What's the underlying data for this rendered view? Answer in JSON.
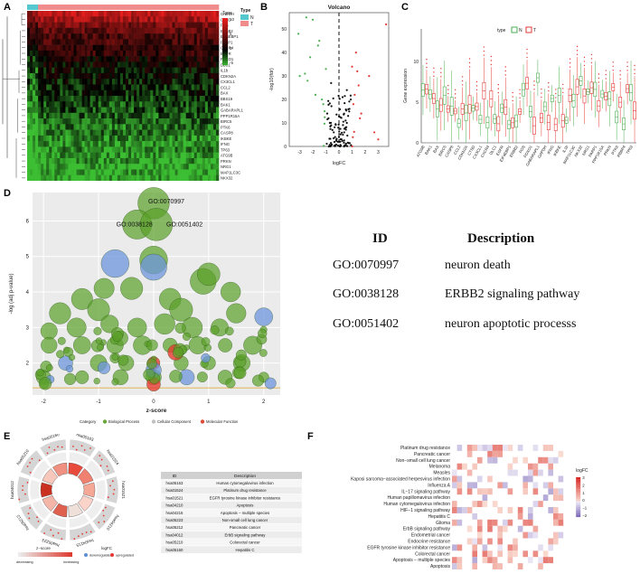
{
  "labels": {
    "A": "A",
    "B": "B",
    "C": "C",
    "D": "D",
    "E": "E",
    "F": "F"
  },
  "panelA": {
    "legend_title": "Type",
    "legend_levels": [
      "N",
      "T"
    ],
    "legend_colors": [
      "#55c8cf",
      "#f08c8c"
    ],
    "scale_ticks": [
      "10",
      "5",
      "0",
      "-5"
    ],
    "genes": [
      "GAPDH",
      "CTSD",
      "FOS",
      "ERBB2",
      "EIF4EBP1",
      "PARP1",
      "CXCR4",
      "EGFR",
      "FOXO1",
      "DLC1",
      "IL1b",
      "CDKN2A",
      "CX3CL1",
      "CCL2",
      "BAX",
      "BBS19",
      "BAK1",
      "GABARAPL1",
      "PPP1R15A",
      "BIRC5",
      "PTK6",
      "CASP8",
      "IKBKE",
      "IFNG",
      "TP63",
      "ATG9B",
      "PRKN",
      "NRG1",
      "MAP1LC3C",
      "NKX32"
    ]
  },
  "panelB": {
    "title": "Volcano",
    "xlabel": "logFC",
    "ylabel": "-log10(fdr)",
    "xticks": [
      "-3",
      "-2",
      "-1",
      "0",
      "1",
      "2",
      "3"
    ],
    "yticks": [
      "0",
      "10",
      "20",
      "30",
      "40",
      "50"
    ]
  },
  "panelC": {
    "ylabel": "Gene expression",
    "legend_title": "type",
    "legend_items": [
      "N",
      "T"
    ],
    "yticks": [
      "0",
      "5",
      "10"
    ],
    "genes": [
      "ATG9B",
      "BAK1",
      "BAX",
      "BIRC5",
      "CASP8",
      "CCL2",
      "CDKN2A",
      "CTSD",
      "CX3CL1",
      "CXCR4",
      "DLC1",
      "EGFR",
      "EIF4EBP1",
      "ERBB2",
      "FOS",
      "FOXO1",
      "GABARAPL1",
      "GAPDH",
      "IFNG",
      "IKBKE",
      "IL1b",
      "MAP1LC3C",
      "NKX32",
      "NRG1",
      "PARP1",
      "PPP1R15A",
      "PRKN",
      "PTK6",
      "RBBP4",
      "TP63"
    ]
  },
  "panelD": {
    "xlabel": "z-score",
    "ylabel": "-log (adj p-value)",
    "xticks": [
      "-2",
      "-1",
      "0",
      "1",
      "2"
    ],
    "yticks": [
      "2",
      "3",
      "4",
      "5",
      "6"
    ],
    "legend_title": "Category",
    "legend_items": [
      "Biological Process",
      "Cellular Component",
      "Molecular Function"
    ],
    "legend_colors": [
      "#6aa63a",
      "#c0c0c0",
      "#e04a3a"
    ],
    "annotations": [
      "GO:0070997",
      "GO:0038128",
      "GO:0051402"
    ]
  },
  "idtable": {
    "headers": [
      "ID",
      "Description"
    ],
    "rows": [
      {
        "id": "GO:0070997",
        "desc": "neuron death"
      },
      {
        "id": "GO:0038128",
        "desc": "ERBB2 signaling pathway"
      },
      {
        "id": "GO:0051402",
        "desc": "neuron apoptotic processs"
      }
    ]
  },
  "panelE": {
    "headers": [
      "ID",
      "Description"
    ],
    "rows": [
      {
        "id": "hsa05163",
        "desc": "Human cytomegalovirus infection"
      },
      {
        "id": "hsa01524",
        "desc": "Platinum drug resistance"
      },
      {
        "id": "hsa01521",
        "desc": "EGFR tyrosine kinase inhibitor resistance"
      },
      {
        "id": "hsa04210",
        "desc": "Apoptosis"
      },
      {
        "id": "hsa04215",
        "desc": "Apoptosis − multiple species"
      },
      {
        "id": "hsa05223",
        "desc": "Non-small cell lung cancer"
      },
      {
        "id": "hsa05212",
        "desc": "Pancreatic cancer"
      },
      {
        "id": "hsa04012",
        "desc": "ErbB signaling pathway"
      },
      {
        "id": "hsa05210",
        "desc": "Colorectal cancer"
      },
      {
        "id": "hsa05160",
        "desc": "Hepatitis C"
      }
    ],
    "ring_labels": [
      "hsa05163",
      "hsa01524",
      "hsa01521",
      "hsa04210",
      "hsa04215",
      "hsa05223",
      "hsa05212",
      "hsa04012",
      "hsa05210",
      "hsa05160"
    ],
    "zscore_title": "z−score",
    "zscore_left": "decreasing",
    "zscore_right": "increasing",
    "logfc_title": "logFC",
    "logfc_items": [
      "downregulated",
      "upregulated"
    ]
  },
  "panelF": {
    "legend_title": "logFC",
    "legend_ticks": [
      "3",
      "2",
      "1",
      "0",
      "−1",
      "−2"
    ],
    "pathways": [
      "Platinum drug resistance",
      "Pancreatic cancer",
      "Non−small cell lung cancer",
      "Melanoma",
      "Measles",
      "Kaposi sarcoma−associated herpesvirus infection",
      "Influenza A",
      "IL−17 signaling pathway",
      "Human papillomavirus infection",
      "Human cytomegalovirus infection",
      "HIF−1 signaling pathway",
      "Hepatitis C",
      "Glioma",
      "ErbB signaling pathway",
      "Endometrial cancer",
      "Endocrine resistance",
      "EGFR tyrosine kinase inhibitor resistance",
      "Colorectal cancer",
      "Apoptosis − multiple species",
      "Apoptosis"
    ]
  },
  "chart_data": [
    {
      "type": "heatmap",
      "title": "",
      "rows": 30,
      "cols": 70,
      "value_range": [
        -5,
        10
      ],
      "groups": [
        "N",
        "T"
      ]
    },
    {
      "type": "scatter",
      "title": "Volcano",
      "xlabel": "logFC",
      "ylabel": "-log10(fdr)",
      "xlim": [
        -3.8,
        3.8
      ],
      "ylim": [
        0,
        57
      ],
      "points": [
        [
          -3.1,
          48
        ],
        [
          -2.5,
          55
        ],
        [
          -2.2,
          38
        ],
        [
          -2.0,
          54
        ],
        [
          -2.6,
          31
        ],
        [
          -1.8,
          22
        ],
        [
          -2.4,
          28
        ],
        [
          -3.0,
          30
        ],
        [
          -1.5,
          45
        ],
        [
          -1.6,
          43
        ],
        [
          -1.2,
          18
        ],
        [
          -1.1,
          15
        ],
        [
          -0.9,
          14
        ],
        [
          -0.8,
          12
        ],
        [
          -0.7,
          10
        ],
        [
          -0.6,
          9
        ],
        [
          -0.5,
          7
        ],
        [
          -0.4,
          6
        ],
        [
          -0.3,
          4
        ],
        [
          -0.2,
          3
        ],
        [
          -0.1,
          2
        ],
        [
          0.1,
          2
        ],
        [
          0.2,
          3
        ],
        [
          0.3,
          5
        ],
        [
          0.4,
          6
        ],
        [
          0.5,
          8
        ],
        [
          0.6,
          10
        ],
        [
          0.7,
          13
        ],
        [
          0.8,
          16
        ],
        [
          0.9,
          20
        ],
        [
          1.1,
          18
        ],
        [
          1.2,
          22
        ],
        [
          1.4,
          32
        ],
        [
          1.5,
          26
        ],
        [
          1.7,
          14
        ],
        [
          2.3,
          30
        ],
        [
          2.7,
          6
        ],
        [
          3.0,
          3
        ],
        [
          3.6,
          52
        ],
        [
          1.3,
          40
        ],
        [
          -1.0,
          33
        ],
        [
          -0.6,
          27
        ],
        [
          0.6,
          24
        ],
        [
          1.0,
          34
        ],
        [
          -1.3,
          20
        ],
        [
          1.6,
          12
        ]
      ]
    },
    {
      "type": "box",
      "title": "",
      "ylabel": "Gene expression",
      "ylim": [
        0,
        14
      ],
      "series": [
        {
          "name": "N"
        },
        {
          "name": "T"
        }
      ]
    },
    {
      "type": "scatter",
      "title": "",
      "xlabel": "z-score",
      "ylabel": "-log (adj p-value)",
      "xlim": [
        -2.2,
        2.3
      ],
      "ylim": [
        1.1,
        6.8
      ],
      "points": [
        [
          0,
          6.5
        ],
        [
          -0.3,
          5.9
        ],
        [
          0.05,
          5.9
        ],
        [
          -0.7,
          4.8
        ],
        [
          0,
          4.9
        ],
        [
          0,
          4.7
        ],
        [
          -1.3,
          3.8
        ],
        [
          -0.9,
          4.1
        ],
        [
          -0.4,
          4.1
        ],
        [
          0.3,
          3.8
        ],
        [
          0.9,
          4.3
        ],
        [
          1.4,
          4.0
        ],
        [
          -1.7,
          3.4
        ],
        [
          -1.0,
          3.5
        ],
        [
          0.5,
          3.5
        ],
        [
          1.0,
          4.5
        ],
        [
          1.5,
          3.4
        ],
        [
          2.0,
          3.3
        ],
        [
          -1.9,
          2.9
        ],
        [
          -1.4,
          3.0
        ],
        [
          -0.8,
          3.1
        ],
        [
          -0.3,
          3.0
        ],
        [
          0.2,
          3.1
        ],
        [
          0.7,
          3.0
        ],
        [
          1.2,
          3.0
        ],
        [
          -1.9,
          2.5
        ],
        [
          -1.3,
          2.5
        ],
        [
          -0.7,
          2.5
        ],
        [
          -0.2,
          2.5
        ],
        [
          0.3,
          2.5
        ],
        [
          0.8,
          2.5
        ],
        [
          1.3,
          2.5
        ],
        [
          1.8,
          2.5
        ],
        [
          -1.6,
          2.0
        ],
        [
          -1.0,
          2.0
        ],
        [
          -0.5,
          2.0
        ],
        [
          0,
          2.0
        ],
        [
          0.5,
          2.0
        ],
        [
          1.0,
          2.0
        ],
        [
          1.6,
          2.0
        ],
        [
          -2.0,
          1.6
        ],
        [
          -1.3,
          1.6
        ],
        [
          -0.6,
          1.6
        ],
        [
          0,
          1.6
        ],
        [
          0.6,
          1.6
        ],
        [
          1.3,
          1.6
        ],
        [
          2.0,
          1.6
        ],
        [
          -0.6,
          2.7
        ],
        [
          0.4,
          2.3
        ],
        [
          0,
          1.8
        ],
        [
          0,
          1.4
        ]
      ]
    },
    {
      "type": "table",
      "rows": 10
    },
    {
      "type": "heatmap",
      "title": "",
      "rows": 20,
      "cols": 22,
      "value_range": [
        -2,
        3
      ]
    }
  ]
}
